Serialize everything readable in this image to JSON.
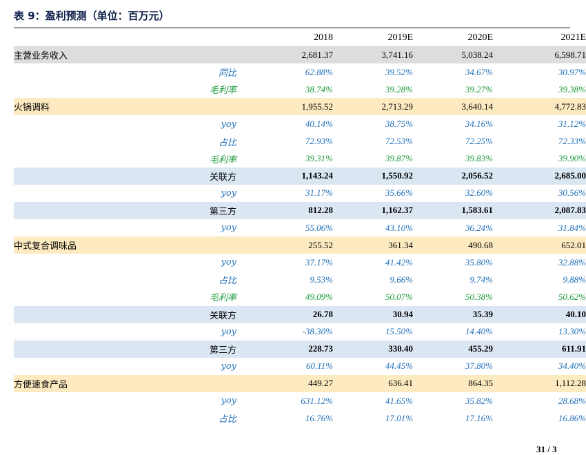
{
  "title": "表 9：盈利预测（单位：百万元）",
  "page_number": "31 / 3",
  "columns": [
    "2018",
    "2019E",
    "2020E",
    "2021E"
  ],
  "rows": [
    {
      "type": "grey",
      "label": "主营业务收入",
      "values": [
        "2,681.37",
        "3,741.16",
        "5,038.24",
        "6,598.71"
      ]
    },
    {
      "type": "pct",
      "color": "blue",
      "label": "同比",
      "values": [
        "62.88%",
        "39.52%",
        "34.67%",
        "30.97%"
      ]
    },
    {
      "type": "pct",
      "color": "green",
      "label": "毛利率",
      "values": [
        "38.74%",
        "39.28%",
        "39.27%",
        "39.38%"
      ]
    },
    {
      "type": "cat",
      "label": "火锅调料",
      "values": [
        "1,955.52",
        "2,713.29",
        "3,640.14",
        "4,772.83"
      ]
    },
    {
      "type": "pct",
      "color": "blue",
      "label": "yoy",
      "values": [
        "40.14%",
        "38.75%",
        "34.16%",
        "31.12%"
      ]
    },
    {
      "type": "pct",
      "color": "blue",
      "label": "占比",
      "values": [
        "72.93%",
        "72.53%",
        "72.25%",
        "72.33%"
      ]
    },
    {
      "type": "pct",
      "color": "green",
      "label": "毛利率",
      "values": [
        "39.31%",
        "39.87%",
        "39.83%",
        "39.90%"
      ]
    },
    {
      "type": "sub",
      "label": "关联方",
      "values": [
        "1,143.24",
        "1,550.92",
        "2,056.52",
        "2,685.00"
      ]
    },
    {
      "type": "pct",
      "color": "blue",
      "label": "yoy",
      "values": [
        "31.17%",
        "35.66%",
        "32.60%",
        "30.56%"
      ]
    },
    {
      "type": "sub",
      "label": "第三方",
      "values": [
        "812.28",
        "1,162.37",
        "1,583.61",
        "2,087.83"
      ]
    },
    {
      "type": "pct",
      "color": "blue",
      "label": "yoy",
      "values": [
        "55.06%",
        "43.10%",
        "36.24%",
        "31.84%"
      ]
    },
    {
      "type": "cat",
      "label": "中式复合调味品",
      "values": [
        "255.52",
        "361.34",
        "490.68",
        "652.01"
      ]
    },
    {
      "type": "pct",
      "color": "blue",
      "label": "yoy",
      "values": [
        "37.17%",
        "41.42%",
        "35.80%",
        "32.88%"
      ]
    },
    {
      "type": "pct",
      "color": "blue",
      "label": "占比",
      "values": [
        "9.53%",
        "9.66%",
        "9.74%",
        "9.88%"
      ]
    },
    {
      "type": "pct",
      "color": "green",
      "label": "毛利率",
      "values": [
        "49.09%",
        "50.07%",
        "50.38%",
        "50.62%"
      ]
    },
    {
      "type": "sub",
      "label": "关联方",
      "values": [
        "26.78",
        "30.94",
        "35.39",
        "40.10"
      ]
    },
    {
      "type": "pct",
      "color": "blue",
      "label": "yoy",
      "values": [
        "-38.30%",
        "15.50%",
        "14.40%",
        "13.30%"
      ]
    },
    {
      "type": "sub",
      "label": "第三方",
      "values": [
        "228.73",
        "330.40",
        "455.29",
        "611.91"
      ]
    },
    {
      "type": "pct",
      "color": "blue",
      "label": "yoy",
      "values": [
        "60.11%",
        "44.45%",
        "37.80%",
        "34.40%"
      ]
    },
    {
      "type": "cat",
      "label": "方便速食产品",
      "values": [
        "449.27",
        "636.41",
        "864.35",
        "1,112.28"
      ]
    },
    {
      "type": "pct",
      "color": "blue",
      "label": "yoy",
      "values": [
        "631.12%",
        "41.65%",
        "35.82%",
        "28.68%"
      ]
    },
    {
      "type": "pct",
      "color": "blue",
      "label": "占比",
      "values": [
        "16.76%",
        "17.01%",
        "17.16%",
        "16.86%"
      ]
    }
  ]
}
